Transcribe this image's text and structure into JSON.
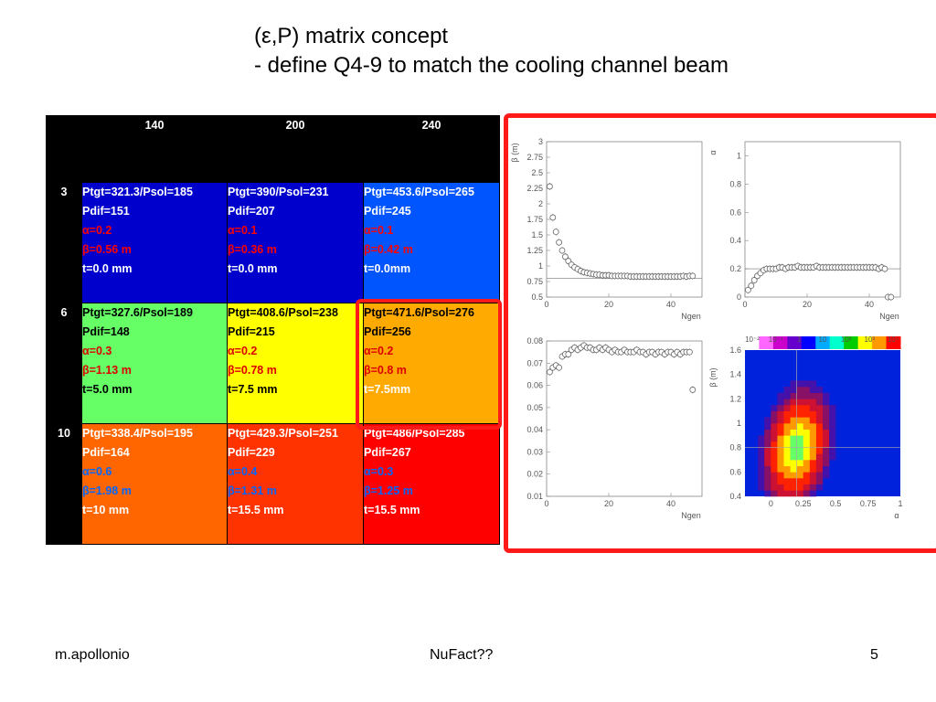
{
  "slide": {
    "title_line1": "(ε,P) matrix concept",
    "title_line2": "- define Q4-9 to match the cooling channel beam",
    "footer_left": "m.apollonio",
    "footer_center": "NuFact??",
    "footer_right": "5"
  },
  "matrix": {
    "columns": [
      "140",
      "200",
      "240"
    ],
    "rows": [
      {
        "label": "3",
        "cells": [
          {
            "ptgt": "Ptgt=321.3/Psol=185",
            "pdif": "Pdif=151",
            "alpha": "α=0.2",
            "beta": "β=0.56 m",
            "t": "t=0.0 mm"
          },
          {
            "ptgt": "Ptgt=390/Psol=231",
            "pdif": "Pdif=207",
            "alpha": "α=0.1",
            "beta": "β=0.36 m",
            "t": "t=0.0 mm"
          },
          {
            "ptgt": "Ptgt=453.6/Psol=265",
            "pdif": "Pdif=245",
            "alpha": "α=0.1",
            "beta": "β=0.42 m",
            "t": "t=0.0mm"
          }
        ]
      },
      {
        "label": "6",
        "cells": [
          {
            "ptgt": "Ptgt=327.6/Psol=189",
            "pdif": "Pdif=148",
            "alpha": "α=0.3",
            "beta": "β=1.13 m",
            "t": "t=5.0 mm"
          },
          {
            "ptgt": "Ptgt=408.6/Psol=238",
            "pdif": "Pdif=215",
            "alpha": "α=0.2",
            "beta": "β=0.78 m",
            "t": "t=7.5 mm"
          },
          {
            "ptgt": "Ptgt=471.6/Psol=276",
            "pdif": "Pdif=256",
            "alpha": "α=0.2",
            "beta": "β=0.8 m",
            "t": "t=7.5mm"
          }
        ]
      },
      {
        "label": "10",
        "cells": [
          {
            "ptgt": "Ptgt=338.4/Psol=195",
            "pdif": "Pdif=164",
            "alpha": "α=0.6",
            "beta": "β=1.98 m",
            "t": "t=10 mm"
          },
          {
            "ptgt": "Ptgt=429.3/Psol=251",
            "pdif": "Pdif=229",
            "alpha": "α=0.4",
            "beta": "β=1.31 m",
            "t": "t=15.5 mm"
          },
          {
            "ptgt": "Ptgt=486/Psol=285",
            "pdif": "Pdif=267",
            "alpha": "α=0.3",
            "beta": "β=1.25 m",
            "t": "t=15.5 mm"
          }
        ]
      }
    ],
    "colors": {
      "blue_dark": "#0000cc",
      "blue": "#0055ff",
      "green": "#66ff66",
      "yellow": "#ffff00",
      "orange_light": "#ffaa00",
      "orange": "#ff6600",
      "red_orange": "#ff3300",
      "red": "#ff0000",
      "highlight": "#ff1a1a"
    }
  },
  "chart_data": [
    {
      "type": "scatter",
      "title": "",
      "xlabel": "Ngen",
      "ylabel": "β (m)",
      "xlim": [
        0,
        50
      ],
      "ylim": [
        0.5,
        3
      ],
      "xticks": [
        "0",
        "20",
        "40"
      ],
      "yticks": [
        "0.5",
        "0.75",
        "1",
        "1.25",
        "1.5",
        "1.75",
        "2",
        "2.25",
        "2.5",
        "2.75",
        "3"
      ],
      "reference_line": 0.8,
      "x": [
        1,
        2,
        3,
        4,
        5,
        6,
        7,
        8,
        9,
        10,
        11,
        12,
        13,
        14,
        15,
        16,
        17,
        18,
        19,
        20,
        21,
        22,
        23,
        24,
        25,
        26,
        27,
        28,
        29,
        30,
        31,
        32,
        33,
        34,
        35,
        36,
        37,
        38,
        39,
        40,
        41,
        42,
        43,
        44,
        45,
        46,
        47
      ],
      "y": [
        2.28,
        1.78,
        1.55,
        1.38,
        1.25,
        1.15,
        1.08,
        1.02,
        0.98,
        0.95,
        0.92,
        0.9,
        0.89,
        0.88,
        0.87,
        0.86,
        0.86,
        0.85,
        0.85,
        0.85,
        0.84,
        0.84,
        0.84,
        0.84,
        0.84,
        0.84,
        0.83,
        0.83,
        0.83,
        0.83,
        0.83,
        0.83,
        0.83,
        0.83,
        0.83,
        0.83,
        0.83,
        0.83,
        0.83,
        0.83,
        0.83,
        0.83,
        0.83,
        0.84,
        0.83,
        0.84,
        0.84
      ]
    },
    {
      "type": "scatter",
      "title": "",
      "xlabel": "Ngen",
      "ylabel": "α",
      "xlim": [
        0,
        50
      ],
      "ylim": [
        0,
        1.1
      ],
      "xticks": [
        "0",
        "20",
        "40"
      ],
      "yticks": [
        "0",
        "0.2",
        "0.4",
        "0.6",
        "0.8",
        "1"
      ],
      "reference_line": 0.2,
      "x": [
        1,
        2,
        3,
        4,
        5,
        6,
        7,
        8,
        9,
        10,
        11,
        12,
        13,
        14,
        15,
        16,
        17,
        18,
        19,
        20,
        21,
        22,
        23,
        24,
        25,
        26,
        27,
        28,
        29,
        30,
        31,
        32,
        33,
        34,
        35,
        36,
        37,
        38,
        39,
        40,
        41,
        42,
        43,
        44,
        45,
        46,
        47
      ],
      "y": [
        0.05,
        0.08,
        0.12,
        0.15,
        0.17,
        0.19,
        0.2,
        0.2,
        0.2,
        0.2,
        0.21,
        0.21,
        0.2,
        0.21,
        0.21,
        0.21,
        0.22,
        0.21,
        0.21,
        0.21,
        0.21,
        0.21,
        0.22,
        0.21,
        0.21,
        0.21,
        0.21,
        0.21,
        0.21,
        0.21,
        0.21,
        0.21,
        0.21,
        0.21,
        0.21,
        0.21,
        0.21,
        0.21,
        0.21,
        0.21,
        0.21,
        0.21,
        0.2,
        0.21,
        0.2,
        0.0,
        0.0
      ]
    },
    {
      "type": "scatter",
      "title": "",
      "xlabel": "Ngen",
      "ylabel": "",
      "xlim": [
        0,
        50
      ],
      "ylim": [
        0.01,
        0.08
      ],
      "xticks": [
        "0",
        "20",
        "40"
      ],
      "yticks": [
        "0.01",
        "0.02",
        "0.03",
        "0.04",
        "0.05",
        "0.06",
        "0.07",
        "0.08"
      ],
      "x": [
        1,
        2,
        3,
        4,
        5,
        6,
        7,
        8,
        9,
        10,
        11,
        12,
        13,
        14,
        15,
        16,
        17,
        18,
        19,
        20,
        21,
        22,
        23,
        24,
        25,
        26,
        27,
        28,
        29,
        30,
        31,
        32,
        33,
        34,
        35,
        36,
        37,
        38,
        39,
        40,
        41,
        42,
        43,
        44,
        45,
        46,
        47
      ],
      "y": [
        0.066,
        0.068,
        0.069,
        0.068,
        0.073,
        0.074,
        0.074,
        0.076,
        0.077,
        0.076,
        0.077,
        0.078,
        0.077,
        0.077,
        0.076,
        0.076,
        0.077,
        0.076,
        0.077,
        0.076,
        0.075,
        0.076,
        0.075,
        0.075,
        0.076,
        0.075,
        0.075,
        0.075,
        0.076,
        0.075,
        0.075,
        0.074,
        0.075,
        0.075,
        0.074,
        0.075,
        0.075,
        0.074,
        0.075,
        0.075,
        0.074,
        0.075,
        0.074,
        0.075,
        0.075,
        0.075,
        0.058
      ]
    },
    {
      "type": "heatmap",
      "title": "",
      "xlabel": "α",
      "ylabel": "β (m)",
      "xlim": [
        -0.2,
        1
      ],
      "ylim": [
        0.4,
        1.6
      ],
      "xticks": [
        "0",
        "0.25",
        "0.5",
        "0.75",
        "1"
      ],
      "yticks": [
        "0.4",
        "0.6",
        "0.8",
        "1",
        "1.2",
        "1.4",
        "1.6"
      ],
      "colorbar_ticks": [
        "10⁻²",
        "10⁻¹",
        "1",
        "10",
        "10²",
        "10³",
        "10⁴"
      ],
      "peak": {
        "alpha": 0.2,
        "beta": 0.8
      },
      "crosshair": {
        "alpha": 0.2,
        "beta": 0.8
      }
    }
  ]
}
